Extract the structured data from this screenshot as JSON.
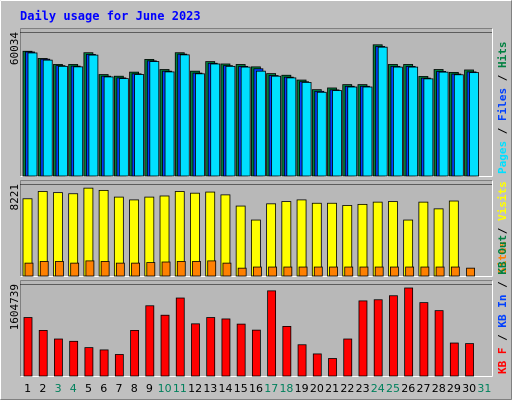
{
  "colors": {
    "background": "#c0c0c0",
    "plot_bg": "#b8b8b8",
    "hits": "#008040",
    "files": "#0040ff",
    "pages": "#00e0ff",
    "visits": "#ffff00",
    "sites": "#ff8000",
    "kbytes": "#ff0000",
    "title": "#0000ff",
    "axis_text": "#000000",
    "weekend_label": "#00805c"
  },
  "chart_data": [
    {
      "type": "bar",
      "title": "Daily usage for June 2023",
      "categories": [
        "1",
        "2",
        "3",
        "4",
        "5",
        "6",
        "7",
        "8",
        "9",
        "10",
        "11",
        "12",
        "13",
        "14",
        "15",
        "16",
        "17",
        "18",
        "19",
        "20",
        "21",
        "22",
        "23",
        "24",
        "25",
        "26",
        "27",
        "28",
        "29",
        "30",
        "31"
      ],
      "weekend_days": [
        "3",
        "4",
        "10",
        "11",
        "17",
        "18",
        "24",
        "25",
        "31"
      ],
      "panels": [
        {
          "name": "hits-files-pages",
          "ymax_label": "60034",
          "ylim": [
            0,
            60034
          ],
          "legend": [
            "Pages",
            "Files",
            "Hits"
          ],
          "series": [
            {
              "name": "Hits",
              "values": [
                52000,
                49000,
                46500,
                46500,
                51400,
                42300,
                41600,
                43300,
                48600,
                44400,
                51400,
                43700,
                47700,
                46700,
                46500,
                45500,
                42700,
                42000,
                40000,
                36000,
                36700,
                38100,
                38100,
                54700,
                46500,
                46500,
                41500,
                44400,
                43200,
                44200,
                null
              ]
            },
            {
              "name": "Files",
              "values": [
                51700,
                48700,
                46000,
                45800,
                50700,
                41600,
                40900,
                42600,
                48000,
                43700,
                50800,
                42900,
                47000,
                46000,
                45700,
                44700,
                41900,
                41200,
                39300,
                35300,
                35900,
                37400,
                37400,
                54000,
                45700,
                45700,
                40800,
                43600,
                42500,
                43400,
                null
              ]
            },
            {
              "name": "Pages",
              "values": [
                51300,
                48300,
                45700,
                45500,
                50400,
                41300,
                40600,
                42300,
                47700,
                43400,
                50500,
                42600,
                46700,
                45700,
                45400,
                43700,
                41600,
                40900,
                39000,
                34900,
                35600,
                37100,
                37100,
                53700,
                45400,
                45400,
                40500,
                43300,
                42200,
                43100,
                null
              ]
            }
          ]
        },
        {
          "name": "visits-sites",
          "ymax_label": "8221",
          "ylim": [
            0,
            8221
          ],
          "legend": [
            "Sites",
            "Visits"
          ],
          "series": [
            {
              "name": "Visits",
              "values": [
                6900,
                7550,
                7450,
                7350,
                7850,
                7650,
                7050,
                6800,
                7050,
                7150,
                7550,
                7400,
                7500,
                7250,
                6250,
                5000,
                6450,
                6650,
                6800,
                6500,
                6500,
                6300,
                6400,
                6600,
                6650,
                5000,
                6600,
                6000,
                6700,
                null,
                null
              ]
            },
            {
              "name": "Sites",
              "values": [
                1150,
                1300,
                1300,
                1150,
                1350,
                1300,
                1150,
                1150,
                1200,
                1250,
                1300,
                1300,
                1350,
                1150,
                700,
                800,
                800,
                800,
                800,
                800,
                800,
                800,
                800,
                800,
                800,
                800,
                800,
                800,
                800,
                700,
                null
              ]
            }
          ]
        },
        {
          "name": "kbytes",
          "ymax_label": "1604739",
          "ylim": [
            0,
            1604739
          ],
          "legend": [
            "KB F",
            "KB In",
            "KB Out"
          ],
          "series": [
            {
              "name": "KB F",
              "values": [
                1020000,
                795000,
                645000,
                605000,
                495000,
                455000,
                375000,
                795000,
                1225000,
                1060000,
                1360000,
                910000,
                1020000,
                995000,
                905000,
                800000,
                1485000,
                865000,
                545000,
                385000,
                305000,
                645000,
                1310000,
                1330000,
                1400000,
                1535000,
                1280000,
                1140000,
                575000,
                565000,
                null
              ]
            }
          ]
        }
      ]
    }
  ]
}
